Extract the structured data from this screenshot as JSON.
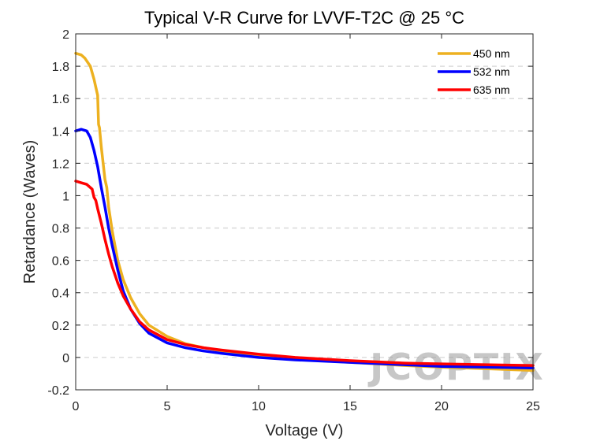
{
  "chart_data": {
    "type": "line",
    "title": "Typical V-R Curve for LVVF-T2C @ 25 °C",
    "xlabel": "Voltage (V)",
    "ylabel": "Retardance (Waves)",
    "xlim": [
      0,
      25
    ],
    "ylim": [
      -0.2,
      2
    ],
    "xticks": [
      0,
      5,
      10,
      15,
      20,
      25
    ],
    "xtick_labels": [
      "0",
      "5",
      "10",
      "15",
      "20",
      "25"
    ],
    "yticks": [
      -0.2,
      0,
      0.2,
      0.4,
      0.6,
      0.8,
      1,
      1.2,
      1.4,
      1.6,
      1.8,
      2
    ],
    "ytick_labels": [
      "-0.2",
      "0",
      "0.2",
      "0.4",
      "0.6",
      "0.8",
      "1",
      "1.2",
      "1.4",
      "1.6",
      "1.8",
      "2"
    ],
    "grid": "horizontal dashed",
    "legend_position": "top-right",
    "watermark": "JCOPTIX",
    "series": [
      {
        "name": "450 nm",
        "color": "#EDB120",
        "x": [
          0,
          0.3,
          0.5,
          0.8,
          1.0,
          1.2,
          1.25,
          1.3,
          1.4,
          1.5,
          1.6,
          1.7,
          1.8,
          2.0,
          2.3,
          2.6,
          3.0,
          3.5,
          4.0,
          5.0,
          6.0,
          7.0,
          8.0,
          10.0,
          12.0,
          15.0,
          18.0,
          20.0,
          25.0
        ],
        "y": [
          1.88,
          1.87,
          1.85,
          1.8,
          1.72,
          1.62,
          1.44,
          1.42,
          1.3,
          1.2,
          1.1,
          1.05,
          0.93,
          0.78,
          0.6,
          0.48,
          0.37,
          0.27,
          0.2,
          0.13,
          0.085,
          0.06,
          0.04,
          0.015,
          -0.01,
          -0.03,
          -0.05,
          -0.06,
          -0.08
        ]
      },
      {
        "name": "532 nm",
        "color": "#0000FF",
        "x": [
          0,
          0.3,
          0.6,
          0.8,
          1.0,
          1.2,
          1.4,
          1.6,
          1.8,
          2.0,
          2.3,
          2.6,
          3.0,
          3.5,
          4.0,
          5.0,
          6.0,
          7.0,
          8.0,
          10.0,
          12.0,
          15.0,
          18.0,
          20.0,
          25.0
        ],
        "y": [
          1.4,
          1.41,
          1.4,
          1.36,
          1.28,
          1.18,
          1.05,
          0.93,
          0.8,
          0.69,
          0.54,
          0.41,
          0.3,
          0.21,
          0.15,
          0.09,
          0.06,
          0.04,
          0.025,
          0.0,
          -0.015,
          -0.03,
          -0.045,
          -0.055,
          -0.065
        ]
      },
      {
        "name": "635 nm",
        "color": "#FF0000",
        "x": [
          0,
          0.3,
          0.6,
          0.9,
          1.0,
          1.1,
          1.2,
          1.4,
          1.6,
          1.8,
          2.0,
          2.3,
          2.6,
          3.0,
          3.5,
          4.0,
          5.0,
          6.0,
          7.0,
          8.0,
          10.0,
          12.0,
          15.0,
          18.0,
          20.0,
          25.0
        ],
        "y": [
          1.09,
          1.08,
          1.07,
          1.04,
          0.99,
          0.97,
          0.92,
          0.83,
          0.73,
          0.64,
          0.56,
          0.46,
          0.38,
          0.3,
          0.22,
          0.17,
          0.11,
          0.08,
          0.06,
          0.045,
          0.02,
          0.0,
          -0.02,
          -0.035,
          -0.04,
          -0.05
        ]
      }
    ]
  }
}
